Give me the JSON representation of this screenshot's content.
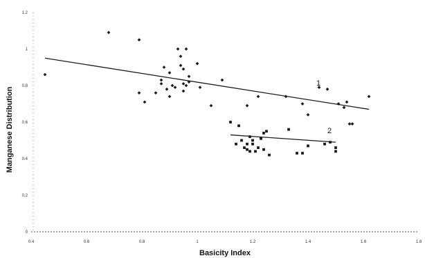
{
  "chart_data": {
    "type": "scatter",
    "xlabel": "Basicity Index",
    "ylabel": "Manganese Distribution",
    "xlim": [
      0.4,
      1.8
    ],
    "ylim": [
      0,
      1.2
    ],
    "x_ticks": [
      "0.4",
      "0.6",
      "0.8",
      "1",
      "1.2",
      "1.4",
      "1.6",
      "1.8"
    ],
    "y_ticks": [
      "0",
      "0.2",
      "0.4",
      "0.6",
      "0.8",
      "1",
      "1.2"
    ],
    "grid": false,
    "colors": {
      "marker": "#1a1a1a",
      "line": "#1a1a1a",
      "axis": "#555555"
    },
    "series": [
      {
        "marker": "diamond",
        "points": [
          [
            0.45,
            0.86
          ],
          [
            0.68,
            1.09
          ],
          [
            0.79,
            1.05
          ],
          [
            0.79,
            0.76
          ],
          [
            0.81,
            0.71
          ],
          [
            0.85,
            0.76
          ],
          [
            0.87,
            0.83
          ],
          [
            0.87,
            0.81
          ],
          [
            0.88,
            0.9
          ],
          [
            0.89,
            0.78
          ],
          [
            0.9,
            0.74
          ],
          [
            0.9,
            0.87
          ],
          [
            0.91,
            0.8
          ],
          [
            0.92,
            0.79
          ],
          [
            0.93,
            1.0
          ],
          [
            0.94,
            0.96
          ],
          [
            0.94,
            0.91
          ],
          [
            0.95,
            0.89
          ],
          [
            0.95,
            0.77
          ],
          [
            0.95,
            0.81
          ],
          [
            0.96,
            0.8
          ],
          [
            0.96,
            1.0
          ],
          [
            0.97,
            0.85
          ],
          [
            0.97,
            0.82
          ],
          [
            1.0,
            0.92
          ],
          [
            1.01,
            0.79
          ],
          [
            1.05,
            0.69
          ],
          [
            1.09,
            0.83
          ],
          [
            1.18,
            0.69
          ],
          [
            1.22,
            0.74
          ],
          [
            1.32,
            0.74
          ],
          [
            1.38,
            0.7
          ],
          [
            1.4,
            0.64
          ],
          [
            1.44,
            0.79
          ],
          [
            1.47,
            0.78
          ],
          [
            1.51,
            0.7
          ],
          [
            1.53,
            0.68
          ],
          [
            1.54,
            0.71
          ],
          [
            1.55,
            0.59
          ],
          [
            1.56,
            0.59
          ],
          [
            1.62,
            0.74
          ]
        ],
        "trend": {
          "x": [
            0.45,
            1.62
          ],
          "y": [
            0.95,
            0.67
          ]
        },
        "label": "1",
        "label_at": [
          1.43,
          0.8
        ]
      },
      {
        "marker": "square",
        "points": [
          [
            1.12,
            0.6
          ],
          [
            1.14,
            0.48
          ],
          [
            1.15,
            0.58
          ],
          [
            1.16,
            0.5
          ],
          [
            1.17,
            0.46
          ],
          [
            1.18,
            0.45
          ],
          [
            1.18,
            0.48
          ],
          [
            1.19,
            0.44
          ],
          [
            1.19,
            0.52
          ],
          [
            1.2,
            0.48
          ],
          [
            1.2,
            0.5
          ],
          [
            1.21,
            0.44
          ],
          [
            1.22,
            0.46
          ],
          [
            1.23,
            0.51
          ],
          [
            1.24,
            0.54
          ],
          [
            1.24,
            0.45
          ],
          [
            1.25,
            0.55
          ],
          [
            1.26,
            0.42
          ],
          [
            1.33,
            0.56
          ],
          [
            1.36,
            0.43
          ],
          [
            1.38,
            0.43
          ],
          [
            1.4,
            0.47
          ],
          [
            1.46,
            0.48
          ],
          [
            1.48,
            0.49
          ],
          [
            1.5,
            0.46
          ],
          [
            1.5,
            0.44
          ]
        ],
        "trend": {
          "x": [
            1.12,
            1.5
          ],
          "y": [
            0.53,
            0.49
          ]
        },
        "label": "2",
        "label_at": [
          1.47,
          0.54
        ]
      }
    ]
  }
}
